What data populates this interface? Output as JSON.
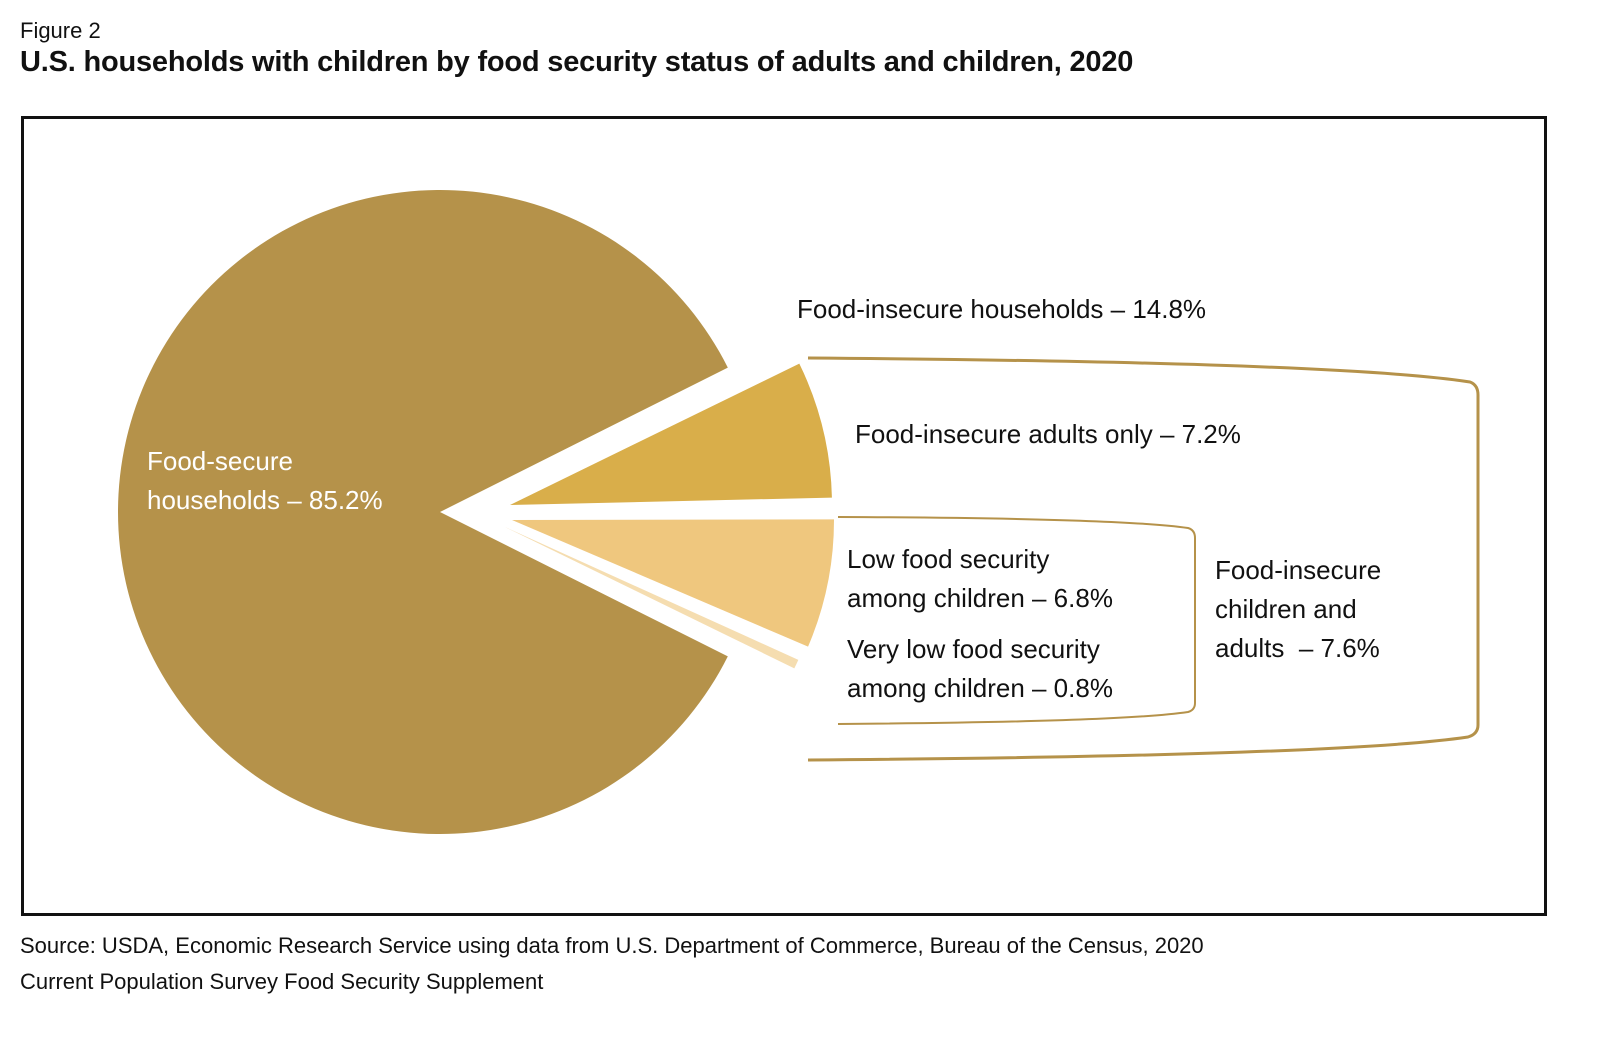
{
  "figure_label": "Figure 2",
  "title": "U.S. households with children by food security status of adults and children, 2020",
  "source_lines": [
    "Source: USDA, Economic Research Service using data from U.S. Department of Commerce, Bureau of the Census, 2020",
    "Current Population Survey Food Security Supplement"
  ],
  "colors": {
    "secure": "#B5924A",
    "adults_only": "#D9AE4A",
    "low_children": "#EFC77E",
    "very_low_children": "#F5DDB0",
    "bracket": "#B5924A"
  },
  "labels": {
    "secure": [
      "Food-secure",
      "households – 85.2%"
    ],
    "insecure_total": "Food-insecure households – 14.8%",
    "adults_only": "Food-insecure adults only – 7.2%",
    "low_children": [
      "Low food security",
      "among children – 6.8%"
    ],
    "very_low_children": [
      "Very low food security",
      "among children – 0.8%"
    ],
    "children_and_adults": [
      "Food-insecure",
      "children and",
      "adults  – 7.6%"
    ]
  },
  "chart_data": {
    "type": "pie",
    "title": "U.S. households with children by food security status of adults and children, 2020",
    "unit": "percent",
    "slices": [
      {
        "name": "Food-secure households",
        "value": 85.2
      },
      {
        "name": "Food-insecure adults only",
        "value": 7.2
      },
      {
        "name": "Low food security among children",
        "value": 6.8
      },
      {
        "name": "Very low food security among children",
        "value": 0.8
      }
    ],
    "groups": [
      {
        "name": "Food-insecure households",
        "value": 14.8,
        "members": [
          "Food-insecure adults only",
          "Low food security among children",
          "Very low food security among children"
        ]
      },
      {
        "name": "Food-insecure children and adults",
        "value": 7.6,
        "members": [
          "Low food security among children",
          "Very low food security among children"
        ]
      }
    ]
  }
}
